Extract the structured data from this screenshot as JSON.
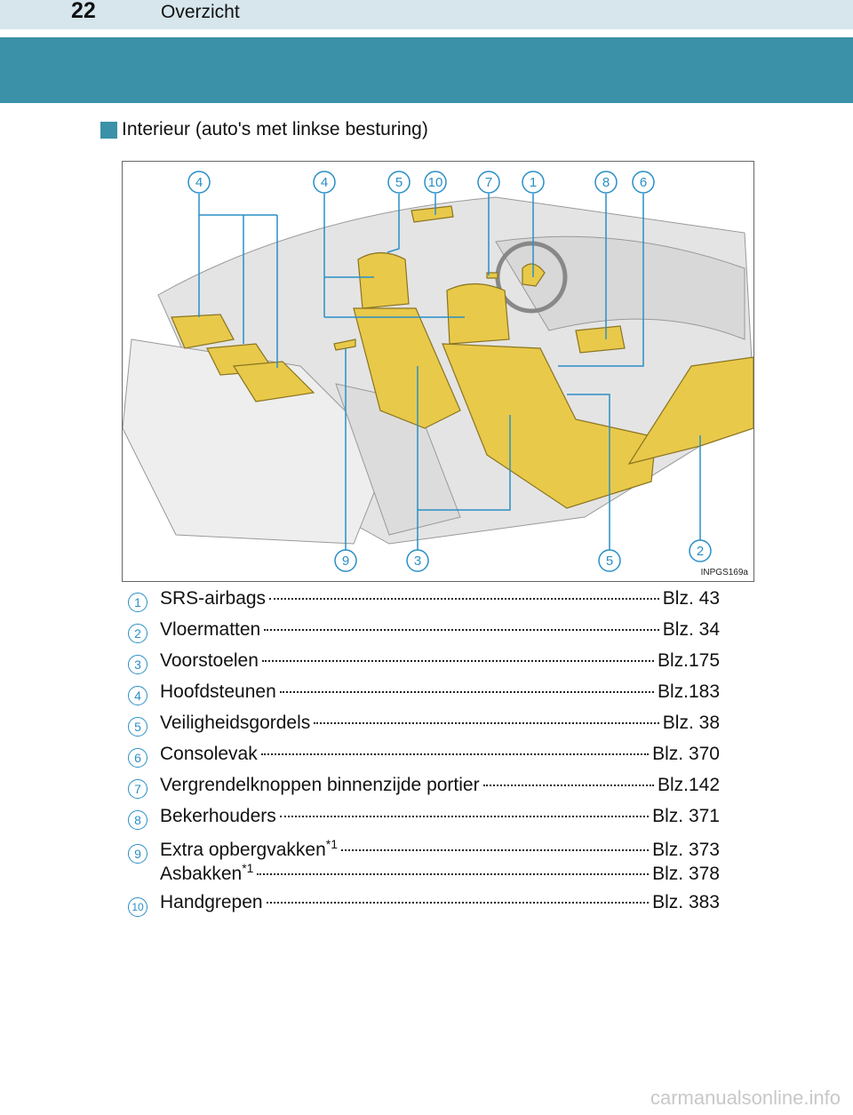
{
  "header": {
    "page_number": "22",
    "section": "Overzicht"
  },
  "heading": "Interieur (auto's met linkse besturing)",
  "figure": {
    "code": "INPGS169a",
    "top_callouts": [
      "4",
      "4",
      "5",
      "10",
      "7",
      "1",
      "8",
      "6"
    ],
    "bottom_callouts": [
      "9",
      "3",
      "5",
      "2"
    ]
  },
  "items": [
    {
      "num": "1",
      "label": "SRS-airbags",
      "page": "Blz. 43"
    },
    {
      "num": "2",
      "label": "Vloermatten",
      "page": "Blz. 34"
    },
    {
      "num": "3",
      "label": "Voorstoelen",
      "page": "Blz.175"
    },
    {
      "num": "4",
      "label": "Hoofdsteunen",
      "page": "Blz.183"
    },
    {
      "num": "5",
      "label": "Veiligheidsgordels",
      "page": "Blz. 38"
    },
    {
      "num": "6",
      "label": "Consolevak",
      "page": "Blz. 370"
    },
    {
      "num": "7",
      "label": "Vergrendelknoppen binnenzijde portier",
      "page": "Blz.142"
    },
    {
      "num": "8",
      "label": "Bekerhouders",
      "page": "Blz. 371"
    },
    {
      "num": "9",
      "label": "Extra opbergvakken",
      "sup": "*1",
      "page": "Blz. 373"
    },
    {
      "num": "",
      "label": "Asbakken",
      "sup": "*1",
      "page": "Blz. 378"
    },
    {
      "num": "10",
      "label": "Handgrepen",
      "page": "Blz. 383"
    }
  ],
  "watermark": "carmanualsonline.info",
  "colors": {
    "accent": "#3a91a8",
    "callout": "#2a8fc7",
    "highlight": "#e8c94a"
  }
}
